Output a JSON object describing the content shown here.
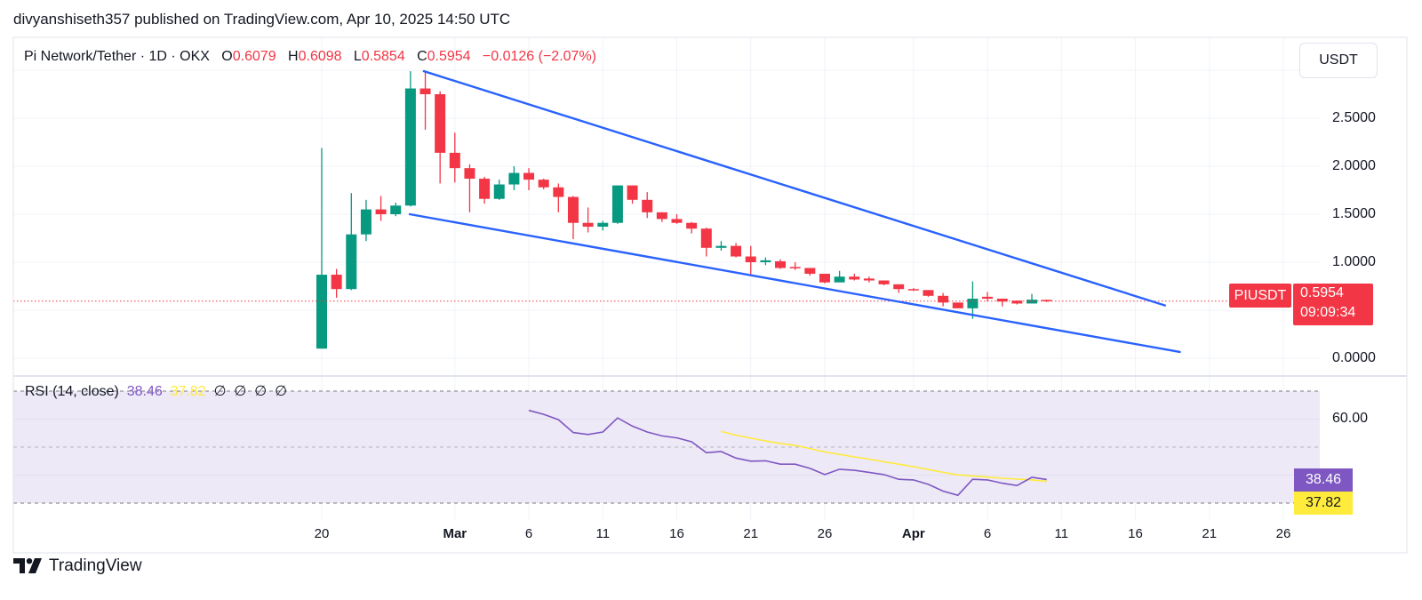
{
  "header": {
    "title": "divyanshiseth357 published on TradingView.com, Apr 10, 2025 14:50 UTC"
  },
  "legend": {
    "symbol": "Pi Network/Tether · 1D · OKX",
    "open_label": "O",
    "open": "0.6079",
    "high_label": "H",
    "high": "0.6098",
    "low_label": "L",
    "low": "0.5854",
    "close_label": "C",
    "close": "0.5954",
    "change": "−0.0126 (−2.07%)"
  },
  "currency_button": "USDT",
  "price_axis": {
    "labels": [
      "2.5000",
      "2.0000",
      "1.5000",
      "1.0000",
      "0.0000"
    ],
    "label_values": [
      2.5,
      2.0,
      1.5,
      1.0,
      0.0
    ],
    "gridlines": [
      0,
      0.5,
      1.0,
      1.5,
      2.0,
      2.5,
      3.0
    ]
  },
  "last_price": {
    "symbol": "PIUSDT",
    "price": "0.5954",
    "value": 0.5954,
    "countdown": "09:09:34"
  },
  "time_axis": [
    {
      "label": "20",
      "day": 0,
      "bold": false
    },
    {
      "label": "Mar",
      "day": 9,
      "bold": true
    },
    {
      "label": "6",
      "day": 14,
      "bold": false
    },
    {
      "label": "11",
      "day": 19,
      "bold": false
    },
    {
      "label": "16",
      "day": 24,
      "bold": false
    },
    {
      "label": "21",
      "day": 29,
      "bold": false
    },
    {
      "label": "26",
      "day": 34,
      "bold": false
    },
    {
      "label": "Apr",
      "day": 40,
      "bold": true
    },
    {
      "label": "6",
      "day": 45,
      "bold": false
    },
    {
      "label": "11",
      "day": 50,
      "bold": false
    },
    {
      "label": "16",
      "day": 55,
      "bold": false
    },
    {
      "label": "21",
      "day": 60,
      "bold": false
    },
    {
      "label": "26",
      "day": 65,
      "bold": false
    }
  ],
  "colors": {
    "up": "#089981",
    "down": "#f23645",
    "trendline": "#2962ff",
    "rsi": "#7e57c2",
    "rsi_ma": "#ffeb3b",
    "rsi_band": "#ede9f6"
  },
  "chart_data": {
    "type": "candlestick",
    "candles": [
      {
        "date": "Feb 20",
        "o": 0.1,
        "h": 2.19,
        "l": 0.1,
        "c": 0.87
      },
      {
        "date": "Feb 21",
        "o": 0.87,
        "h": 0.93,
        "l": 0.63,
        "c": 0.72
      },
      {
        "date": "Feb 22",
        "o": 0.72,
        "h": 1.72,
        "l": 0.71,
        "c": 1.29
      },
      {
        "date": "Feb 23",
        "o": 1.29,
        "h": 1.65,
        "l": 1.22,
        "c": 1.55
      },
      {
        "date": "Feb 24",
        "o": 1.55,
        "h": 1.69,
        "l": 1.43,
        "c": 1.5
      },
      {
        "date": "Feb 25",
        "o": 1.5,
        "h": 1.62,
        "l": 1.48,
        "c": 1.59
      },
      {
        "date": "Feb 26",
        "o": 1.59,
        "h": 2.99,
        "l": 1.58,
        "c": 2.81
      },
      {
        "date": "Feb 27",
        "o": 2.81,
        "h": 2.99,
        "l": 2.38,
        "c": 2.75
      },
      {
        "date": "Feb 28",
        "o": 2.75,
        "h": 2.78,
        "l": 1.82,
        "c": 2.14
      },
      {
        "date": "Mar 1",
        "o": 2.14,
        "h": 2.35,
        "l": 1.83,
        "c": 1.98
      },
      {
        "date": "Mar 2",
        "o": 1.98,
        "h": 2.02,
        "l": 1.52,
        "c": 1.87
      },
      {
        "date": "Mar 3",
        "o": 1.87,
        "h": 1.89,
        "l": 1.61,
        "c": 1.66
      },
      {
        "date": "Mar 4",
        "o": 1.66,
        "h": 1.86,
        "l": 1.65,
        "c": 1.81
      },
      {
        "date": "Mar 5",
        "o": 1.81,
        "h": 2.0,
        "l": 1.75,
        "c": 1.93
      },
      {
        "date": "Mar 6",
        "o": 1.93,
        "h": 1.98,
        "l": 1.75,
        "c": 1.86
      },
      {
        "date": "Mar 7",
        "o": 1.86,
        "h": 1.87,
        "l": 1.76,
        "c": 1.78
      },
      {
        "date": "Mar 8",
        "o": 1.78,
        "h": 1.82,
        "l": 1.52,
        "c": 1.68
      },
      {
        "date": "Mar 9",
        "o": 1.68,
        "h": 1.69,
        "l": 1.24,
        "c": 1.41
      },
      {
        "date": "Mar 10",
        "o": 1.41,
        "h": 1.57,
        "l": 1.31,
        "c": 1.37
      },
      {
        "date": "Mar 11",
        "o": 1.37,
        "h": 1.43,
        "l": 1.33,
        "c": 1.41
      },
      {
        "date": "Mar 12",
        "o": 1.41,
        "h": 1.8,
        "l": 1.4,
        "c": 1.8
      },
      {
        "date": "Mar 13",
        "o": 1.8,
        "h": 1.8,
        "l": 1.61,
        "c": 1.65
      },
      {
        "date": "Mar 14",
        "o": 1.65,
        "h": 1.73,
        "l": 1.46,
        "c": 1.52
      },
      {
        "date": "Mar 15",
        "o": 1.52,
        "h": 1.52,
        "l": 1.42,
        "c": 1.45
      },
      {
        "date": "Mar 16",
        "o": 1.45,
        "h": 1.5,
        "l": 1.4,
        "c": 1.41
      },
      {
        "date": "Mar 17",
        "o": 1.41,
        "h": 1.42,
        "l": 1.3,
        "c": 1.35
      },
      {
        "date": "Mar 18",
        "o": 1.35,
        "h": 1.36,
        "l": 1.06,
        "c": 1.15
      },
      {
        "date": "Mar 19",
        "o": 1.15,
        "h": 1.22,
        "l": 1.12,
        "c": 1.17
      },
      {
        "date": "Mar 20",
        "o": 1.17,
        "h": 1.2,
        "l": 1.05,
        "c": 1.06
      },
      {
        "date": "Mar 21",
        "o": 1.06,
        "h": 1.17,
        "l": 0.86,
        "c": 1.0
      },
      {
        "date": "Mar 22",
        "o": 1.0,
        "h": 1.05,
        "l": 0.97,
        "c": 1.02
      },
      {
        "date": "Mar 23",
        "o": 1.01,
        "h": 1.03,
        "l": 0.93,
        "c": 0.94
      },
      {
        "date": "Mar 24",
        "o": 0.95,
        "h": 1.0,
        "l": 0.92,
        "c": 0.94
      },
      {
        "date": "Mar 25",
        "o": 0.94,
        "h": 0.94,
        "l": 0.86,
        "c": 0.88
      },
      {
        "date": "Mar 26",
        "o": 0.88,
        "h": 0.88,
        "l": 0.78,
        "c": 0.79
      },
      {
        "date": "Mar 27",
        "o": 0.79,
        "h": 0.91,
        "l": 0.79,
        "c": 0.85
      },
      {
        "date": "Mar 28",
        "o": 0.85,
        "h": 0.88,
        "l": 0.81,
        "c": 0.82
      },
      {
        "date": "Mar 29",
        "o": 0.83,
        "h": 0.85,
        "l": 0.79,
        "c": 0.81
      },
      {
        "date": "Mar 30",
        "o": 0.81,
        "h": 0.81,
        "l": 0.76,
        "c": 0.77
      },
      {
        "date": "Mar 31",
        "o": 0.77,
        "h": 0.77,
        "l": 0.68,
        "c": 0.72
      },
      {
        "date": "Apr 1",
        "o": 0.72,
        "h": 0.73,
        "l": 0.7,
        "c": 0.716
      },
      {
        "date": "Apr 2",
        "o": 0.71,
        "h": 0.71,
        "l": 0.64,
        "c": 0.65
      },
      {
        "date": "Apr 3",
        "o": 0.65,
        "h": 0.68,
        "l": 0.54,
        "c": 0.58
      },
      {
        "date": "Apr 4",
        "o": 0.58,
        "h": 0.58,
        "l": 0.52,
        "c": 0.52
      },
      {
        "date": "Apr 5",
        "o": 0.52,
        "h": 0.8,
        "l": 0.41,
        "c": 0.62
      },
      {
        "date": "Apr 6",
        "o": 0.64,
        "h": 0.69,
        "l": 0.59,
        "c": 0.62
      },
      {
        "date": "Apr 7",
        "o": 0.62,
        "h": 0.62,
        "l": 0.54,
        "c": 0.59
      },
      {
        "date": "Apr 8",
        "o": 0.6,
        "h": 0.6,
        "l": 0.56,
        "c": 0.57
      },
      {
        "date": "Apr 9",
        "o": 0.57,
        "h": 0.67,
        "l": 0.57,
        "c": 0.61
      },
      {
        "date": "Apr 10",
        "o": 0.6079,
        "h": 0.6098,
        "l": 0.5854,
        "c": 0.5954
      }
    ],
    "trendlines": [
      {
        "from": {
          "day": 6.9,
          "price": 2.99
        },
        "to": {
          "day": 57,
          "price": 0.55
        }
      },
      {
        "from": {
          "day": 5.95,
          "price": 1.5
        },
        "to": {
          "day": 58,
          "price": 0.065
        }
      }
    ],
    "ylim": [
      0,
      3.0
    ]
  },
  "rsi": {
    "label": "RSI (14, close)",
    "value": "38.46",
    "ma_value": "37.82",
    "na_values": [
      "∅",
      "∅",
      "∅",
      "∅"
    ],
    "axis_label": "60.00",
    "upper_band": 70,
    "middle": 50,
    "lower_band": 30,
    "values": [
      null,
      null,
      null,
      null,
      null,
      null,
      null,
      null,
      null,
      null,
      null,
      null,
      null,
      null,
      63.1,
      61.7,
      59.8,
      55.2,
      54.5,
      55.4,
      60.4,
      57.5,
      55.4,
      54.0,
      53.3,
      51.9,
      48.0,
      48.4,
      46.1,
      45.0,
      45.1,
      43.9,
      43.9,
      42.4,
      40.2,
      42.1,
      41.7,
      41.0,
      40.2,
      38.5,
      38.3,
      36.7,
      34.3,
      32.8,
      38.5,
      38.3,
      37.1,
      36.3,
      39.2,
      38.46
    ],
    "ma_values": [
      null,
      null,
      null,
      null,
      null,
      null,
      null,
      null,
      null,
      null,
      null,
      null,
      null,
      null,
      null,
      null,
      null,
      null,
      null,
      null,
      null,
      null,
      null,
      null,
      null,
      null,
      null,
      55.6,
      54.3,
      53.2,
      52.2,
      51.3,
      50.6,
      49.5,
      48.3,
      47.4,
      46.5,
      45.7,
      44.8,
      43.9,
      43.0,
      42.0,
      41.0,
      40.1,
      39.7,
      39.3,
      38.9,
      38.6,
      38.3,
      37.82
    ]
  },
  "footer": {
    "brand": "TradingView"
  }
}
